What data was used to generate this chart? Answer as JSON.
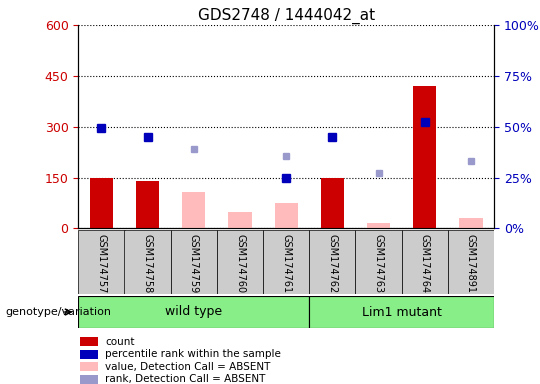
{
  "title": "GDS2748 / 1444042_at",
  "samples": [
    "GSM174757",
    "GSM174758",
    "GSM174759",
    "GSM174760",
    "GSM174761",
    "GSM174762",
    "GSM174763",
    "GSM174764",
    "GSM174891"
  ],
  "count": [
    148,
    140,
    null,
    null,
    null,
    148,
    null,
    420,
    null
  ],
  "percentile_rank": [
    295,
    270,
    null,
    null,
    148,
    270,
    null,
    315,
    null
  ],
  "absent_value": [
    null,
    null,
    108,
    48,
    75,
    null,
    15,
    null,
    30
  ],
  "absent_rank": [
    null,
    null,
    235,
    null,
    215,
    null,
    165,
    null,
    200
  ],
  "wild_type_indices": [
    0,
    1,
    2,
    3,
    4
  ],
  "lim1_mutant_indices": [
    5,
    6,
    7,
    8
  ],
  "left_ylim": [
    0,
    600
  ],
  "left_yticks": [
    0,
    150,
    300,
    450,
    600
  ],
  "right_ylim": [
    0,
    100
  ],
  "right_yticks": [
    0,
    25,
    50,
    75,
    100
  ],
  "right_yticklabels": [
    "0%",
    "25%",
    "50%",
    "75%",
    "100%"
  ],
  "bar_color_count": "#cc0000",
  "bar_color_absent": "#ffbbbb",
  "dot_color_rank": "#0000bb",
  "dot_color_absent_rank": "#9999cc",
  "genotype_label": "genotype/variation",
  "wildtype_label": "wild type",
  "mutant_label": "Lim1 mutant",
  "green_band_color": "#88ee88",
  "gray_cell_color": "#cccccc",
  "legend_items": [
    {
      "label": "count",
      "color": "#cc0000"
    },
    {
      "label": "percentile rank within the sample",
      "color": "#0000bb"
    },
    {
      "label": "value, Detection Call = ABSENT",
      "color": "#ffbbbb"
    },
    {
      "label": "rank, Detection Call = ABSENT",
      "color": "#9999cc"
    }
  ]
}
